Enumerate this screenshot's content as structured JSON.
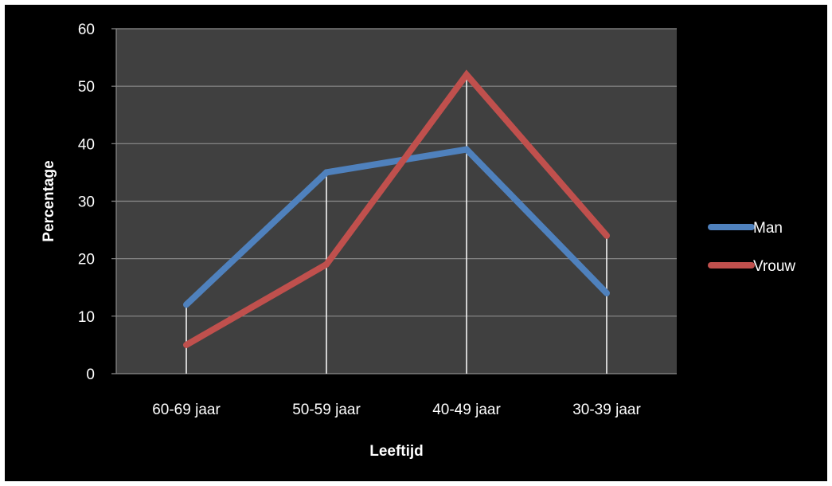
{
  "chart_data": {
    "type": "line",
    "categories": [
      "60-69 jaar",
      "50-59 jaar",
      "40-49 jaar",
      "30-39 jaar"
    ],
    "series": [
      {
        "name": "Man",
        "values": [
          12,
          35,
          39,
          14
        ],
        "color": "#4F81BD"
      },
      {
        "name": "Vrouw",
        "values": [
          5,
          19,
          52,
          24
        ],
        "color": "#C0504D"
      }
    ],
    "xlabel": "Leeftijd",
    "ylabel": "Percentage",
    "ylim": [
      0,
      60
    ],
    "yticks": [
      "0",
      "10",
      "20",
      "30",
      "40",
      "50",
      "60"
    ],
    "grid": true,
    "legend": "right",
    "colors": {
      "background": "#000000",
      "plot_area": "#404040",
      "gridline": "#8c8c8c",
      "drop_line": "#ffffff",
      "text": "#ffffff"
    }
  }
}
